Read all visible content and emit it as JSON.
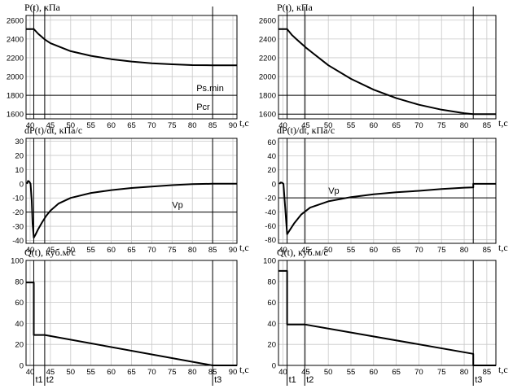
{
  "chart_data": [
    {
      "type": "line",
      "column": "left",
      "row": 1,
      "title": "P(t), кПа",
      "xlabel": "t,c",
      "xlim": [
        39,
        91
      ],
      "ylim": [
        1550,
        2650
      ],
      "yticks": [
        1600,
        1800,
        2000,
        2200,
        2400,
        2600
      ],
      "xticks": [
        40,
        45,
        50,
        55,
        60,
        65,
        70,
        75,
        80,
        85,
        90
      ],
      "hlines": [
        {
          "y": 1800,
          "label": "Ps.min"
        },
        {
          "y": 1600,
          "label": "Pcr"
        }
      ],
      "vlines": [
        40.9,
        43.6,
        85
      ],
      "series": [
        {
          "x": [
            39,
            40.9,
            42,
            43.6,
            45,
            50,
            55,
            60,
            65,
            70,
            75,
            80,
            85,
            91
          ],
          "y": [
            2505,
            2505,
            2455,
            2395,
            2355,
            2270,
            2220,
            2185,
            2160,
            2142,
            2130,
            2122,
            2120,
            2120
          ]
        }
      ]
    },
    {
      "type": "line",
      "column": "left",
      "row": 2,
      "title": "dP(t)/dt, кПа/с",
      "xlabel": "t,c",
      "xlim": [
        39,
        91
      ],
      "ylim": [
        -42,
        32
      ],
      "yticks": [
        -40,
        -30,
        -20,
        -10,
        0,
        10,
        20,
        30
      ],
      "xticks": [
        40,
        45,
        50,
        55,
        60,
        65,
        70,
        75,
        80,
        85,
        90
      ],
      "hlines": [
        {
          "y": -20,
          "label": "Vp"
        }
      ],
      "vlines": [
        40.9,
        43.6,
        85
      ],
      "series": [
        {
          "x": [
            39.2,
            39.5,
            39.8,
            40.1,
            40.4,
            40.6,
            40.9,
            41.3,
            42,
            43,
            44,
            45,
            47,
            50,
            55,
            60,
            65,
            70,
            75,
            80,
            85,
            91
          ],
          "y": [
            0,
            2,
            1.5,
            0,
            -12,
            -28,
            -38,
            -36,
            -32,
            -27,
            -22.5,
            -19,
            -14,
            -10,
            -6.5,
            -4.5,
            -3,
            -2,
            -1,
            -0.3,
            0,
            0
          ]
        }
      ]
    },
    {
      "type": "line",
      "column": "left",
      "row": 3,
      "title": "Q(t), куб.м/с",
      "xlabel": "t,c",
      "xlim": [
        39,
        91
      ],
      "ylim": [
        0,
        100
      ],
      "yticks": [
        0,
        20,
        40,
        60,
        80,
        100
      ],
      "xticks": [
        40,
        45,
        50,
        55,
        60,
        65,
        70,
        75,
        80,
        85,
        90
      ],
      "vlines": [
        40.9,
        43.6,
        85
      ],
      "vline_labels": [
        "t1",
        "t2",
        "t3"
      ],
      "series": [
        {
          "x": [
            39,
            40.9,
            40.9,
            43.6,
            82,
            85,
            91
          ],
          "y": [
            79,
            79,
            29,
            29,
            2,
            0,
            0
          ]
        }
      ]
    },
    {
      "type": "line",
      "column": "right",
      "row": 1,
      "title": "P(t), кПа",
      "xlabel": "t,c",
      "xlim": [
        39,
        87
      ],
      "ylim": [
        1550,
        2650
      ],
      "yticks": [
        1600,
        1800,
        2000,
        2200,
        2400,
        2600
      ],
      "xticks": [
        40,
        45,
        50,
        55,
        60,
        65,
        70,
        75,
        80,
        85
      ],
      "hlines": [
        {
          "y": 1800,
          "label": ""
        },
        {
          "y": 1600,
          "label": ""
        }
      ],
      "vlines": [
        40.9,
        44.8,
        82
      ],
      "series": [
        {
          "x": [
            39,
            40.9,
            42,
            43,
            45,
            50,
            55,
            60,
            65,
            70,
            75,
            80,
            82,
            87
          ],
          "y": [
            2505,
            2505,
            2440,
            2395,
            2310,
            2120,
            1975,
            1860,
            1770,
            1700,
            1647,
            1610,
            1600,
            1600
          ]
        }
      ]
    },
    {
      "type": "line",
      "column": "right",
      "row": 2,
      "title": "dP(t)/dt, кПа/с",
      "xlabel": "t,c",
      "xlim": [
        39,
        87
      ],
      "ylim": [
        -85,
        65
      ],
      "yticks": [
        -80,
        -60,
        -40,
        -20,
        0,
        20,
        40,
        60
      ],
      "xticks": [
        40,
        45,
        50,
        55,
        60,
        65,
        70,
        75,
        80,
        85
      ],
      "hlines": [
        {
          "y": -20,
          "label": "Vp"
        }
      ],
      "vlines": [
        40.9,
        44.8,
        82
      ],
      "series": [
        {
          "x": [
            39.2,
            39.5,
            39.8,
            40.1,
            40.5,
            40.9,
            41.5,
            42.5,
            44,
            46,
            50,
            55,
            60,
            65,
            70,
            75,
            80,
            82,
            82,
            87
          ],
          "y": [
            0,
            2,
            1.5,
            0,
            -35,
            -72,
            -66,
            -56,
            -44,
            -34,
            -25,
            -19,
            -15,
            -12,
            -10,
            -7.5,
            -5.5,
            -5,
            0,
            0
          ]
        }
      ]
    },
    {
      "type": "line",
      "column": "right",
      "row": 3,
      "title": "Q(t), куб.м/с",
      "xlabel": "t,c",
      "xlim": [
        39,
        87
      ],
      "ylim": [
        0,
        100
      ],
      "yticks": [
        0,
        20,
        40,
        60,
        80,
        100
      ],
      "xticks": [
        40,
        45,
        50,
        55,
        60,
        65,
        70,
        75,
        80,
        85
      ],
      "vlines": [
        40.9,
        44.8,
        82
      ],
      "vline_labels": [
        "t1",
        "t2",
        "t3"
      ],
      "series": [
        {
          "x": [
            39,
            40.9,
            40.9,
            44.8,
            82,
            82,
            87
          ],
          "y": [
            90,
            90,
            39,
            39,
            11,
            0,
            0
          ]
        }
      ]
    }
  ]
}
